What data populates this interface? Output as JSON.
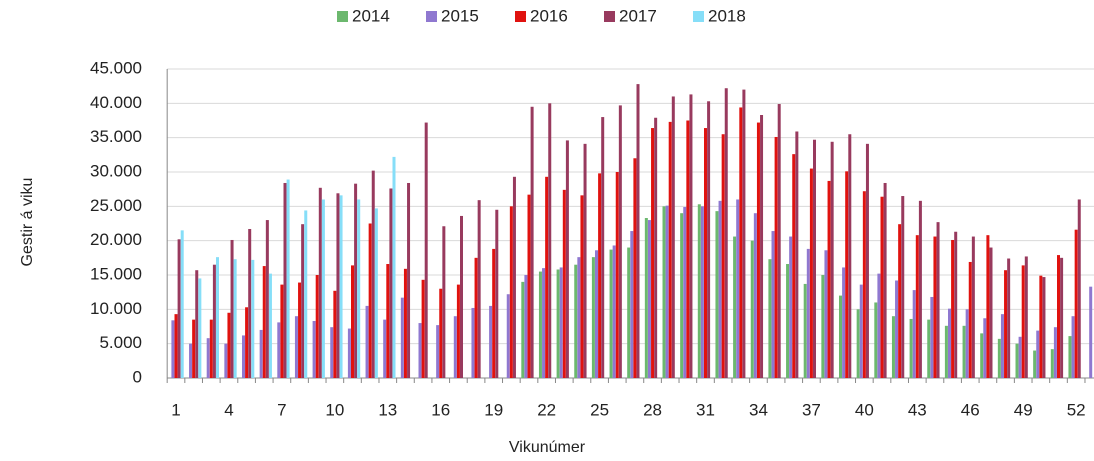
{
  "chart_data": {
    "type": "bar",
    "x_label": "Vikunúmer",
    "y_label": "Gestir á viku",
    "categories": [
      "1",
      null,
      null,
      "4",
      null,
      null,
      "7",
      null,
      null,
      "10",
      null,
      null,
      "13",
      null,
      null,
      "16",
      null,
      null,
      "19",
      null,
      null,
      "22",
      null,
      null,
      "25",
      null,
      null,
      "28",
      null,
      null,
      "31",
      null,
      null,
      "34",
      null,
      null,
      "37",
      null,
      null,
      "40",
      null,
      null,
      "43",
      null,
      null,
      "46",
      null,
      null,
      "49",
      null,
      null,
      "52",
      null
    ],
    "series": [
      {
        "name": "2014",
        "color": "#6cb86e",
        "values": [
          null,
          null,
          null,
          null,
          null,
          null,
          null,
          null,
          null,
          null,
          null,
          null,
          null,
          null,
          null,
          null,
          null,
          null,
          null,
          null,
          14000,
          15500,
          15800,
          16500,
          17600,
          18700,
          19000,
          23300,
          25000,
          24000,
          25300,
          24300,
          20600,
          20000,
          17300,
          16600,
          13700,
          15000,
          12000,
          10000,
          11000,
          9000,
          8600,
          8500,
          7600,
          7600,
          6500,
          5700,
          5000,
          4000,
          4200,
          6100,
          null
        ]
      },
      {
        "name": "2015",
        "color": "#8f78d0",
        "values": [
          8400,
          5000,
          5800,
          5000,
          6200,
          7000,
          8100,
          9000,
          8300,
          7400,
          7200,
          10500,
          8500,
          11700,
          8000,
          7700,
          9000,
          10200,
          10500,
          12200,
          15000,
          16000,
          16100,
          17600,
          18600,
          19300,
          21400,
          23000,
          25100,
          24900,
          25000,
          25800,
          26000,
          24000,
          21400,
          20600,
          18800,
          18600,
          16100,
          13600,
          15200,
          14200,
          12800,
          11800,
          10100,
          10000,
          8700,
          9300,
          6000,
          6900,
          7400,
          9000,
          13300
        ]
      },
      {
        "name": "2016",
        "color": "#e0120f",
        "values": [
          9300,
          8500,
          8500,
          9500,
          10300,
          16300,
          13600,
          13900,
          15000,
          12700,
          16400,
          22500,
          16600,
          15900,
          14300,
          13000,
          13600,
          17500,
          18800,
          25000,
          26700,
          29300,
          27400,
          26600,
          29800,
          30000,
          32000,
          36400,
          37300,
          37500,
          36400,
          35500,
          39400,
          37200,
          35100,
          32600,
          30500,
          28700,
          30100,
          27200,
          26400,
          22400,
          20800,
          20600,
          20100,
          16900,
          20800,
          15700,
          16400,
          14900,
          17900,
          21600,
          null
        ]
      },
      {
        "name": "2017",
        "color": "#983a5e",
        "values": [
          20200,
          15700,
          16500,
          20100,
          21700,
          23000,
          28400,
          22400,
          27700,
          26900,
          28300,
          30200,
          27600,
          28400,
          37200,
          22100,
          23600,
          25900,
          24500,
          29300,
          39500,
          40000,
          34600,
          34100,
          38000,
          39700,
          42800,
          37900,
          41000,
          41300,
          40300,
          42200,
          42000,
          38300,
          39900,
          35900,
          34700,
          34400,
          35500,
          34100,
          28400,
          26500,
          25800,
          22700,
          21300,
          20600,
          19000,
          17400,
          17700,
          14700,
          17500,
          26000,
          null
        ]
      },
      {
        "name": "2018",
        "color": "#86def8",
        "values": [
          21500,
          14500,
          17600,
          17300,
          17200,
          15200,
          28900,
          24400,
          26000,
          26600,
          26000,
          24700,
          32200,
          null,
          null,
          null,
          null,
          null,
          null,
          null,
          null,
          null,
          null,
          null,
          null,
          null,
          null,
          null,
          null,
          null,
          null,
          null,
          null,
          null,
          null,
          null,
          null,
          null,
          null,
          null,
          null,
          null,
          null,
          null,
          null,
          null,
          null,
          null,
          null,
          null,
          null,
          null,
          null
        ]
      }
    ],
    "ylim": [
      0,
      45000
    ],
    "yticks": [
      0,
      {
        "value": 5000,
        "label": "5.000"
      },
      {
        "value": 10000,
        "label": "10.000"
      },
      {
        "value": 15000,
        "label": "15.000"
      },
      {
        "value": 20000,
        "label": "20.000"
      },
      {
        "value": 25000,
        "label": "25.000"
      },
      {
        "value": 30000,
        "label": "30.000"
      },
      {
        "value": 35000,
        "label": "35.000"
      },
      {
        "value": 40000,
        "label": "40.000"
      },
      {
        "value": 45000,
        "label": "45.000"
      }
    ],
    "grid": true,
    "legend": "top"
  }
}
